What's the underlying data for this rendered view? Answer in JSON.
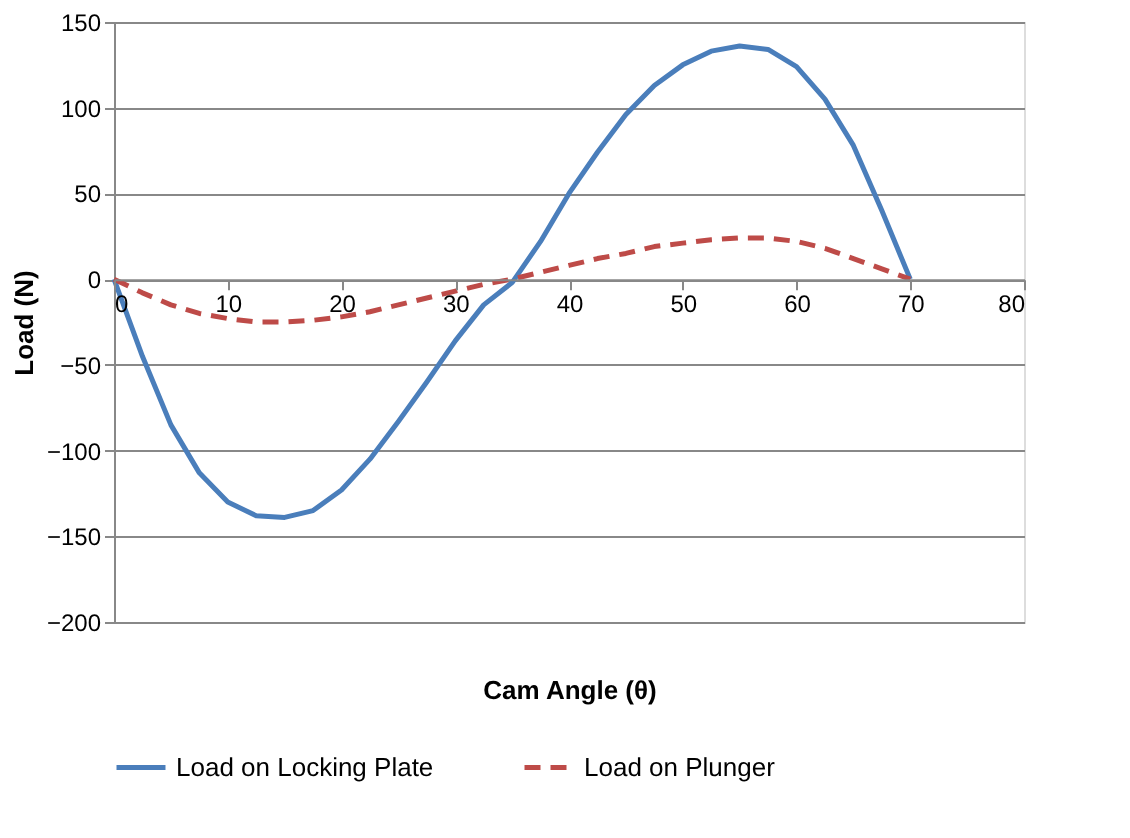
{
  "chart_data": {
    "type": "line",
    "xlabel": "Cam Angle (θ)",
    "ylabel": "Load (N)",
    "xlim": [
      0,
      80
    ],
    "xticks": [
      0,
      10,
      20,
      30,
      40,
      50,
      60,
      70,
      80
    ],
    "ylim": [
      -200,
      150
    ],
    "yticks": [
      -200,
      -150,
      -100,
      -50,
      0,
      50,
      100,
      150
    ],
    "grid": "y",
    "legend": "bottom",
    "marker": "none",
    "x": [
      0,
      2.5,
      5,
      7.5,
      10,
      12.5,
      15,
      17.5,
      20,
      22.5,
      25,
      27.5,
      30,
      32.5,
      35,
      37.5,
      40,
      42.5,
      45,
      47.5,
      50,
      52.5,
      55,
      57.5,
      60,
      62.5,
      65,
      67.5,
      70
    ],
    "series": [
      {
        "name": "Load on Locking Plate",
        "color": "#4a7ebb",
        "line_style": "solid",
        "values": [
          0,
          -45,
          -85,
          -113,
          -130,
          -138,
          -139,
          -135,
          -123,
          -105,
          -83,
          -60,
          -36,
          -15,
          -2,
          22,
          50,
          74,
          96,
          113,
          125,
          133,
          136,
          134,
          124,
          105,
          78,
          40,
          0
        ]
      },
      {
        "name": "Load on Plunger",
        "color": "#be4b48",
        "line_style": "dashed",
        "values": [
          0,
          -8,
          -15,
          -20,
          -23,
          -25,
          -25,
          -24,
          -22,
          -19,
          -15,
          -11,
          -7,
          -3,
          0,
          4,
          8,
          12,
          15,
          19,
          21,
          23,
          24,
          24,
          22,
          18,
          12,
          6,
          0
        ]
      }
    ]
  }
}
